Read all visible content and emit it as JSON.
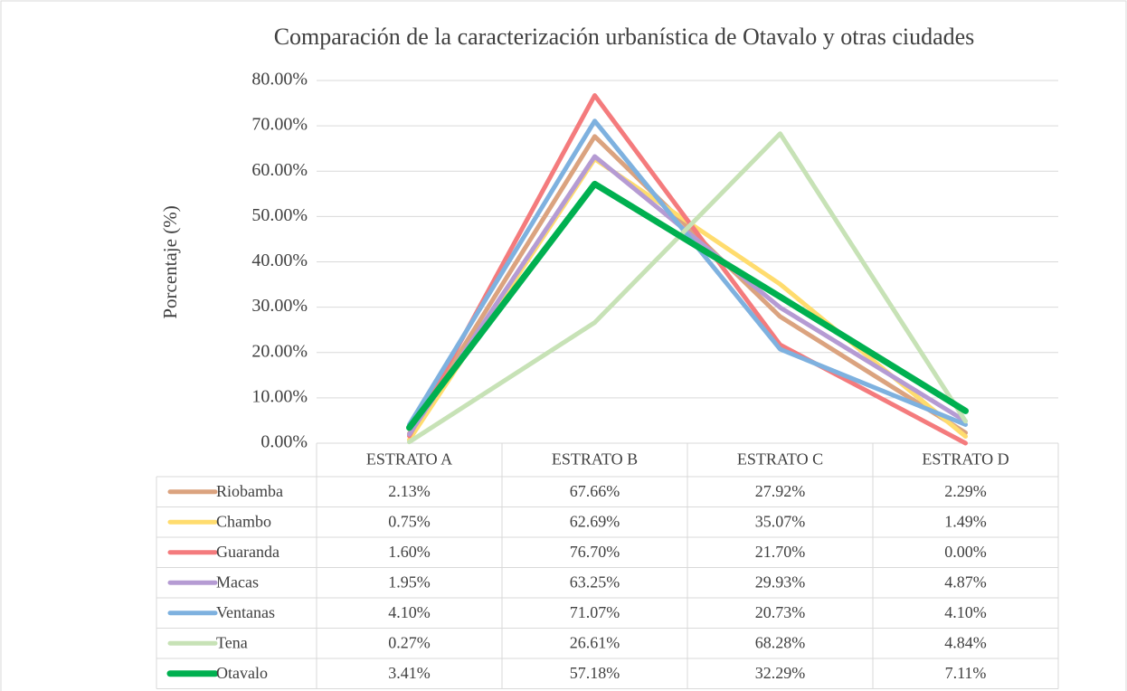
{
  "chart_data": {
    "type": "line",
    "title": "Comparación de la caracterización urbanística de Otavalo y otras ciudades",
    "ylabel": "Porcentaje (%)",
    "categories": [
      "ESTRATO A",
      "ESTRATO B",
      "ESTRATO C",
      "ESTRATO D"
    ],
    "ylim": [
      0,
      80
    ],
    "yticks": [
      {
        "value": 0,
        "label": "0.00%"
      },
      {
        "value": 10,
        "label": "10.00%"
      },
      {
        "value": 20,
        "label": "20.00%"
      },
      {
        "value": 30,
        "label": "30.00%"
      },
      {
        "value": 40,
        "label": "40.00%"
      },
      {
        "value": 50,
        "label": "50.00%"
      },
      {
        "value": 60,
        "label": "60.00%"
      },
      {
        "value": 70,
        "label": "70.00%"
      },
      {
        "value": 80,
        "label": "80.00%"
      }
    ],
    "grid": true,
    "series": [
      {
        "name": "Riobamba",
        "color": "#dba37f",
        "values": [
          2.13,
          67.66,
          27.92,
          2.29
        ],
        "value_labels": [
          "2.13%",
          "67.66%",
          "27.92%",
          "2.29%"
        ]
      },
      {
        "name": "Chambo",
        "color": "#ffdc6e",
        "values": [
          0.75,
          62.69,
          35.07,
          1.49
        ],
        "value_labels": [
          "0.75%",
          "62.69%",
          "35.07%",
          "1.49%"
        ]
      },
      {
        "name": "Guaranda",
        "color": "#f47b7d",
        "values": [
          1.6,
          76.7,
          21.7,
          0.0
        ],
        "value_labels": [
          "1.60%",
          "76.70%",
          "21.70%",
          "0.00%"
        ]
      },
      {
        "name": "Macas",
        "color": "#b59bd3",
        "values": [
          1.95,
          63.25,
          29.93,
          4.87
        ],
        "value_labels": [
          "1.95%",
          "63.25%",
          "29.93%",
          "4.87%"
        ]
      },
      {
        "name": "Ventanas",
        "color": "#7eb1df",
        "values": [
          4.1,
          71.07,
          20.73,
          4.1
        ],
        "value_labels": [
          "4.10%",
          "71.07%",
          "20.73%",
          "4.10%"
        ]
      },
      {
        "name": "Tena",
        "color": "#c7e2b6",
        "values": [
          0.27,
          26.61,
          68.28,
          4.84
        ],
        "value_labels": [
          "0.27%",
          "26.61%",
          "68.28%",
          "4.84%"
        ]
      },
      {
        "name": "Otavalo",
        "color": "#00b050",
        "values": [
          3.41,
          57.18,
          32.29,
          7.11
        ],
        "value_labels": [
          "3.41%",
          "57.18%",
          "32.29%",
          "7.11%"
        ]
      }
    ]
  }
}
